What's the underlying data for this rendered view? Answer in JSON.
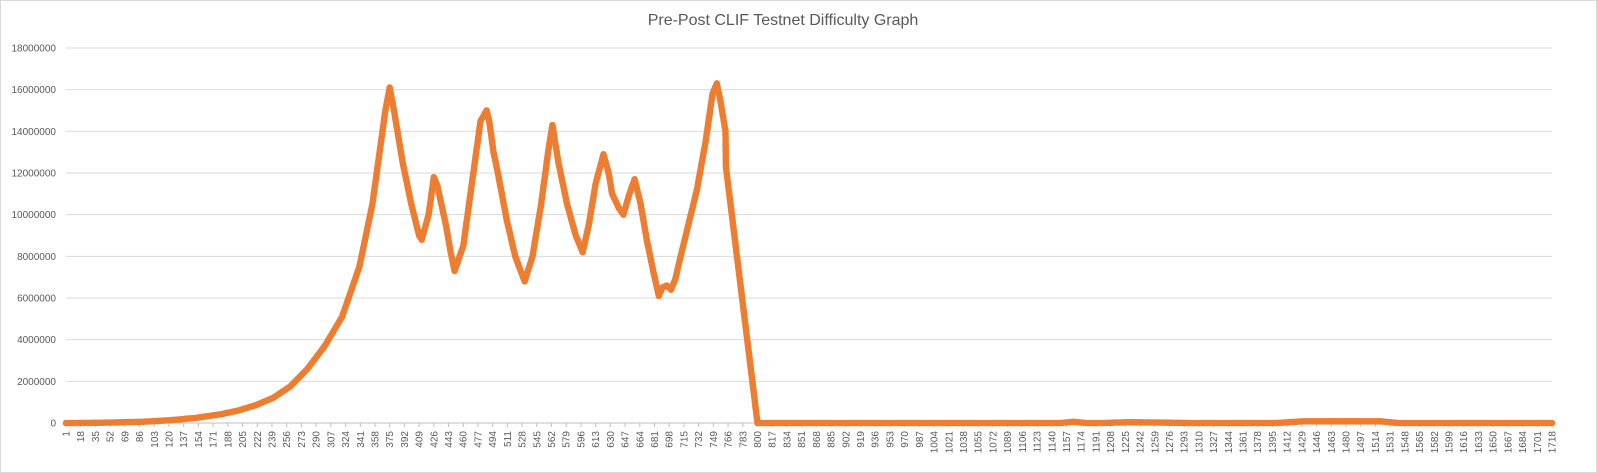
{
  "chart_data": {
    "type": "line",
    "title": "Pre-Post CLIF Testnet Difficulty Graph",
    "xlabel": "",
    "ylabel": "",
    "ylim": [
      0,
      18000000
    ],
    "yticks": [
      0,
      2000000,
      4000000,
      6000000,
      8000000,
      10000000,
      12000000,
      14000000,
      16000000,
      18000000
    ],
    "ytick_labels": [
      "0",
      "2000000",
      "4000000",
      "6000000",
      "8000000",
      "10000000",
      "12000000",
      "14000000",
      "16000000",
      "18000000"
    ],
    "xlim": [
      1,
      1718
    ],
    "x_tick_labels": [
      "1",
      "18",
      "35",
      "52",
      "69",
      "86",
      "103",
      "120",
      "137",
      "154",
      "171",
      "188",
      "205",
      "222",
      "239",
      "256",
      "273",
      "290",
      "307",
      "324",
      "341",
      "358",
      "375",
      "392",
      "409",
      "426",
      "443",
      "460",
      "477",
      "494",
      "511",
      "528",
      "545",
      "562",
      "579",
      "596",
      "613",
      "630",
      "647",
      "664",
      "681",
      "698",
      "715",
      "732",
      "749",
      "766",
      "783",
      "800",
      "817",
      "834",
      "851",
      "868",
      "885",
      "902",
      "919",
      "936",
      "953",
      "970",
      "987",
      "1004",
      "1021",
      "1038",
      "1055",
      "1072",
      "1089",
      "1106",
      "1123",
      "1140",
      "1157",
      "1174",
      "1191",
      "1208",
      "1225",
      "1242",
      "1259",
      "1276",
      "1293",
      "1310",
      "1327",
      "1344",
      "1361",
      "1378",
      "1395",
      "1412",
      "1429",
      "1446",
      "1463",
      "1480",
      "1497",
      "1514",
      "1531",
      "1548",
      "1565",
      "1582",
      "1599",
      "1616",
      "1633",
      "1650",
      "1667",
      "1684",
      "1701",
      "1718"
    ],
    "grid": true,
    "legend": "none",
    "series": [
      {
        "color": "#ed7d31",
        "x": [
          1,
          30,
          60,
          90,
          120,
          150,
          180,
          200,
          220,
          240,
          260,
          280,
          300,
          320,
          340,
          355,
          365,
          370,
          375,
          380,
          390,
          400,
          409,
          412,
          420,
          426,
          430,
          440,
          445,
          450,
          460,
          470,
          480,
          487,
          490,
          495,
          500,
          510,
          520,
          531,
          540,
          550,
          558,
          563,
          570,
          580,
          590,
          598,
          605,
          613,
          622,
          628,
          632,
          640,
          645,
          652,
          658,
          665,
          672,
          680,
          686,
          690,
          695,
          700,
          705,
          710,
          720,
          730,
          740,
          748,
          753,
          757,
          763,
          763.5,
          800,
          1000,
          1150,
          1165,
          1180,
          1200,
          1230,
          1300,
          1400,
          1430,
          1460,
          1500,
          1520,
          1540,
          1600,
          1718
        ],
        "values": [
          0,
          5000,
          30000,
          60000,
          130000,
          240000,
          420000,
          600000,
          850000,
          1200000,
          1750000,
          2600000,
          3700000,
          5100000,
          7500000,
          10500000,
          13500000,
          15000000,
          16100000,
          15000000,
          12500000,
          10500000,
          9000000,
          8800000,
          10000000,
          11800000,
          11400000,
          9500000,
          8300000,
          7300000,
          8500000,
          11500000,
          14500000,
          15000000,
          14500000,
          13000000,
          12000000,
          9800000,
          8000000,
          6800000,
          8000000,
          10500000,
          13000000,
          14300000,
          12500000,
          10500000,
          9000000,
          8200000,
          9500000,
          11500000,
          12900000,
          12000000,
          11000000,
          10300000,
          10000000,
          11000000,
          11700000,
          10500000,
          8800000,
          7200000,
          6100000,
          6500000,
          6600000,
          6400000,
          6900000,
          7800000,
          9500000,
          11200000,
          13500000,
          15800000,
          16300000,
          15500000,
          14000000,
          12300000,
          0,
          0,
          0,
          60000,
          0,
          0,
          40000,
          0,
          0,
          80000,
          80000,
          80000,
          80000,
          0,
          0,
          0
        ]
      }
    ]
  }
}
